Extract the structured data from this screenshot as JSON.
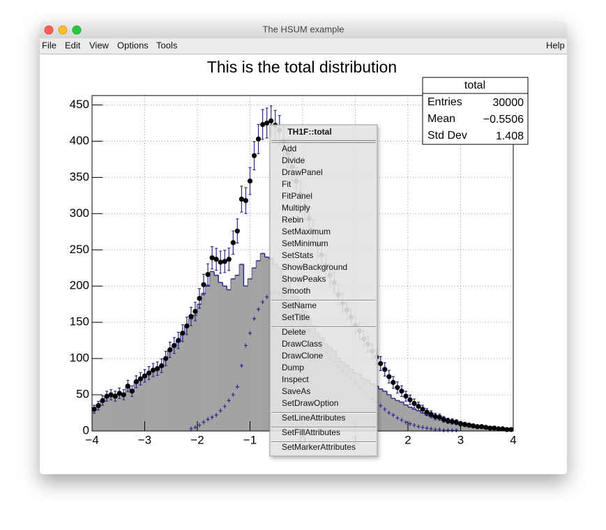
{
  "window": {
    "title": "The HSUM example",
    "menu": [
      "File",
      "Edit",
      "View",
      "Options",
      "Tools"
    ],
    "help": "Help"
  },
  "chart_data": {
    "type": "histogram",
    "title": "This is the total distribution",
    "xlim": [
      -4,
      4
    ],
    "ylim": [
      0,
      463
    ],
    "grid": true,
    "xticks": [
      {
        "value": -4,
        "label": "−4"
      },
      {
        "value": -3,
        "label": "−3"
      },
      {
        "value": -2,
        "label": "−2"
      },
      {
        "value": -1,
        "label": "−1"
      },
      0,
      1,
      2,
      3,
      4
    ],
    "yticks": [
      0,
      50,
      100,
      150,
      200,
      250,
      300,
      350,
      400,
      450
    ],
    "bins": [
      -4,
      -3.92,
      -3.84,
      -3.76,
      -3.68,
      -3.6,
      -3.52,
      -3.44,
      -3.36,
      -3.28,
      -3.2,
      -3.12,
      -3.04,
      -2.96,
      -2.88,
      -2.8,
      -2.72,
      -2.64,
      -2.56,
      -2.48,
      -2.4,
      -2.32,
      -2.24,
      -2.16,
      -2.08,
      -2,
      -1.92,
      -1.84,
      -1.76,
      -1.68,
      -1.6,
      -1.52,
      -1.44,
      -1.36,
      -1.28,
      -1.2,
      -1.12,
      -1.04,
      -0.96,
      -0.88,
      -0.8,
      -0.72,
      -0.64,
      -0.56,
      -0.48,
      -0.4,
      -0.32,
      -0.24,
      -0.16,
      -0.08,
      0,
      0.08,
      0.16,
      0.24,
      0.32,
      0.4,
      0.48,
      0.56,
      0.64,
      0.72,
      0.8,
      0.88,
      0.96,
      1.04,
      1.12,
      1.2,
      1.28,
      1.36,
      1.44,
      1.52,
      1.6,
      1.68,
      1.76,
      1.84,
      1.92,
      2,
      2.08,
      2.16,
      2.24,
      2.32,
      2.4,
      2.48,
      2.56,
      2.64,
      2.72,
      2.8,
      2.88,
      2.96,
      3.04,
      3.12,
      3.2,
      3.28,
      3.36,
      3.44,
      3.52,
      3.6,
      3.68,
      3.76,
      3.84,
      3.92,
      4
    ],
    "series": [
      {
        "style": "fill",
        "color": "#a3a3a3",
        "line_color": "#2b2b8c",
        "values": [
          30,
          35,
          42,
          48,
          50,
          48,
          52,
          50,
          62,
          55,
          68,
          72,
          76,
          80,
          84,
          86,
          90,
          100,
          112,
          118,
          125,
          135,
          145,
          155,
          160,
          175,
          190,
          200,
          220,
          215,
          205,
          200,
          195,
          210,
          215,
          230,
          200,
          210,
          225,
          235,
          245,
          240,
          238,
          230,
          225,
          215,
          205,
          195,
          185,
          175,
          165,
          155,
          145,
          135,
          128,
          120,
          115,
          110,
          100,
          95,
          90,
          85,
          80,
          78,
          72,
          70,
          65,
          62,
          58,
          55,
          50,
          45,
          42,
          40,
          36,
          33,
          30,
          28,
          25,
          22,
          20,
          18,
          17,
          15,
          13,
          12,
          11,
          10,
          9,
          8,
          7,
          6,
          6,
          5,
          4,
          4,
          3,
          3,
          2,
          2
        ]
      },
      {
        "style": "cross",
        "color": "#2b2b8c",
        "values": [
          null,
          null,
          null,
          null,
          null,
          null,
          null,
          null,
          null,
          null,
          null,
          null,
          null,
          null,
          null,
          null,
          null,
          null,
          null,
          null,
          null,
          null,
          null,
          3,
          5,
          8,
          12,
          16,
          19,
          22,
          28,
          34,
          42,
          50,
          61,
          90,
          118,
          135,
          155,
          168,
          178,
          185,
          190,
          192,
          190,
          185,
          178,
          170,
          160,
          152,
          145,
          138,
          130,
          122,
          115,
          108,
          100,
          95,
          88,
          82,
          77,
          72,
          66,
          60,
          55,
          50,
          45,
          40,
          35,
          30,
          25,
          22,
          18,
          15,
          12,
          10,
          8,
          6,
          5,
          4,
          3,
          2,
          2,
          1,
          1,
          1,
          1,
          null,
          null,
          null,
          null,
          null,
          null,
          null,
          null,
          null,
          null,
          null,
          null,
          null
        ]
      },
      {
        "style": "points",
        "color": "#000000",
        "values": [
          30,
          35,
          42,
          48,
          50,
          48,
          52,
          50,
          62,
          55,
          68,
          72,
          76,
          80,
          84,
          86,
          90,
          100,
          112,
          118,
          125,
          135,
          145,
          158,
          165,
          183,
          202,
          216,
          239,
          237,
          233,
          234,
          237,
          260,
          276,
          320,
          318,
          345,
          380,
          403,
          423,
          425,
          428,
          422,
          415,
          400,
          383,
          365,
          345,
          327,
          310,
          293,
          275,
          257,
          243,
          228,
          215,
          205,
          188,
          177,
          167,
          157,
          146,
          138,
          127,
          120,
          110,
          102,
          93,
          85,
          75,
          67,
          60,
          55,
          48,
          43,
          38,
          34,
          30,
          26,
          23,
          20,
          19,
          16,
          14,
          13,
          12,
          10,
          9,
          8,
          7,
          6,
          6,
          5,
          4,
          4,
          3,
          3,
          2,
          2
        ],
        "errors": [
          5.5,
          5.9,
          6.5,
          6.9,
          7.1,
          6.9,
          7.2,
          7.1,
          7.9,
          7.4,
          8.2,
          8.5,
          8.7,
          8.9,
          9.2,
          9.3,
          9.5,
          10,
          10.6,
          10.9,
          11.2,
          11.6,
          12,
          12.6,
          12.8,
          13.5,
          14.2,
          14.7,
          15.5,
          15.1,
          15.3,
          15.3,
          15.4,
          16.1,
          16.6,
          17.9,
          17.8,
          18.6,
          19.5,
          20.1,
          20.6,
          20.6,
          20.7,
          20.5,
          20.4,
          20,
          19.6,
          19.1,
          18.6,
          18.1,
          17.6,
          17.1,
          16.6,
          16,
          15.6,
          15.1,
          14.7,
          14.3,
          13.7,
          13.3,
          12.9,
          12.5,
          12.1,
          11.7,
          11.3,
          11,
          10.5,
          10.1,
          9.6,
          9.2,
          8.7,
          8.2,
          7.7,
          7.4,
          6.9,
          6.6,
          6.2,
          5.8,
          5.5,
          5.1,
          4.8,
          4.5,
          4.4,
          4,
          3.7,
          3.6,
          3.5,
          3.2,
          3,
          2.8,
          2.6,
          2.4,
          2.4,
          2.2,
          2,
          2,
          1.7,
          1.7,
          1.4,
          1.4
        ]
      }
    ],
    "stats": {
      "title": "total",
      "rows": [
        [
          "Entries",
          30000
        ],
        [
          "Mean",
          "−0.5506"
        ],
        [
          "Std Dev",
          1.408
        ]
      ]
    }
  },
  "context_menu": {
    "title": "TH1F::total",
    "groups": [
      [
        "Add",
        "Divide",
        "DrawPanel",
        "Fit",
        "FitPanel",
        "Multiply",
        "Rebin",
        "SetMaximum",
        "SetMinimum",
        "SetStats",
        "ShowBackground",
        "ShowPeaks",
        "Smooth"
      ],
      [
        "SetName",
        "SetTitle"
      ],
      [
        "Delete",
        "DrawClass",
        "DrawClone",
        "Dump",
        "Inspect",
        "SaveAs",
        "SetDrawOption"
      ],
      [
        "SetLineAttributes"
      ],
      [
        "SetFillAttributes"
      ],
      [
        "SetMarkerAttributes"
      ]
    ]
  }
}
